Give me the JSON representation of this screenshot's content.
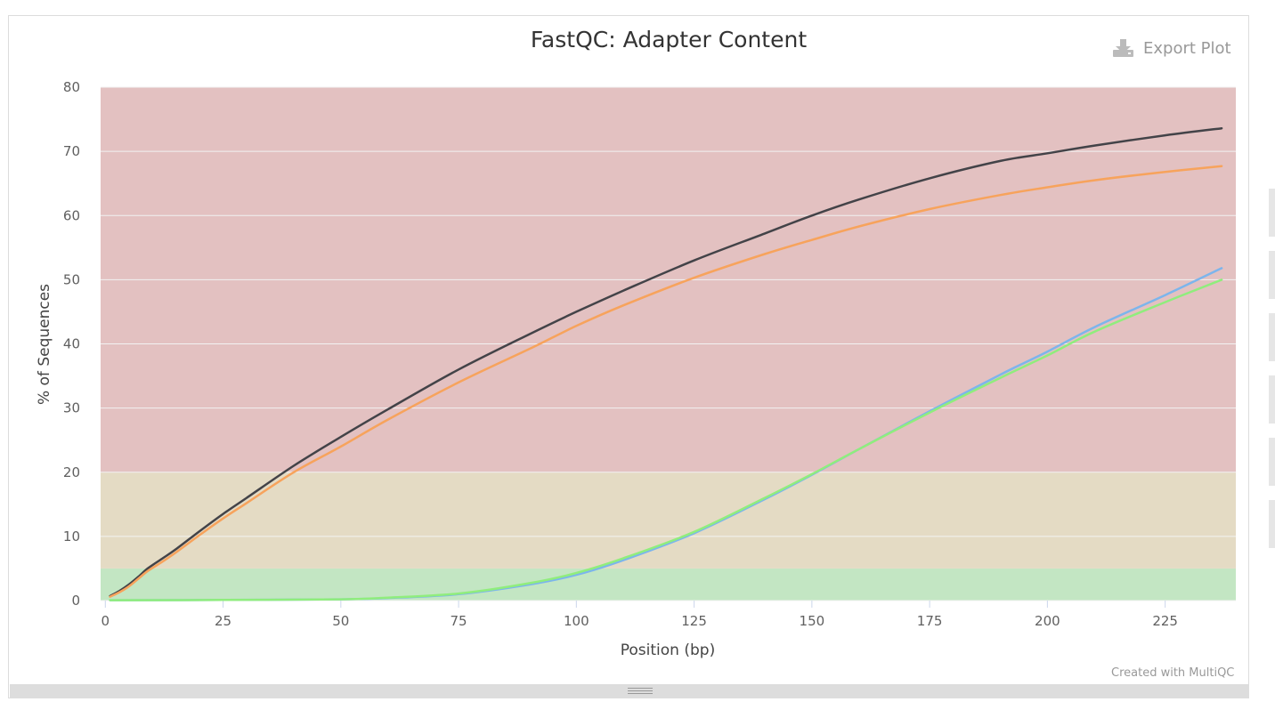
{
  "export_label": "Export Plot",
  "credit": "Created with MultiQC",
  "colors": {
    "band_fail": "#e3c1c1",
    "band_warn": "#e4dbc4",
    "band_pass": "#c3e6c3",
    "series": [
      "#434348",
      "#f7a35c",
      "#7cb5ec",
      "#90ed7d"
    ]
  },
  "chart_data": {
    "type": "line",
    "title": "FastQC: Adapter Content",
    "xlabel": "Position (bp)",
    "ylabel": "% of Sequences",
    "xlim": [
      -1,
      240
    ],
    "ylim": [
      0,
      80
    ],
    "xticks": [
      0,
      25,
      50,
      75,
      100,
      125,
      150,
      175,
      200,
      225
    ],
    "yticks": [
      0,
      10,
      20,
      30,
      40,
      50,
      60,
      70,
      80
    ],
    "bands": [
      {
        "from": 0,
        "to": 5,
        "level": "pass"
      },
      {
        "from": 5,
        "to": 20,
        "level": "warn"
      },
      {
        "from": 20,
        "to": 80,
        "level": "fail"
      }
    ],
    "grid": true,
    "legend": "none",
    "series": [
      {
        "x": [
          1,
          3,
          5,
          7,
          9,
          12,
          15,
          20,
          25,
          30,
          40,
          50,
          60,
          75,
          90,
          100,
          110,
          125,
          140,
          150,
          160,
          175,
          190,
          200,
          210,
          225,
          237
        ],
        "values": [
          0.7,
          1.5,
          2.5,
          3.7,
          5.0,
          6.5,
          8.0,
          10.8,
          13.5,
          16.0,
          21.0,
          25.5,
          29.8,
          36.0,
          41.5,
          45.0,
          48.3,
          53.0,
          57.2,
          60.0,
          62.5,
          65.8,
          68.5,
          69.7,
          70.9,
          72.5,
          73.6
        ]
      },
      {
        "x": [
          1,
          3,
          5,
          7,
          9,
          12,
          15,
          20,
          25,
          30,
          40,
          50,
          60,
          75,
          90,
          100,
          110,
          125,
          140,
          150,
          160,
          175,
          190,
          200,
          210,
          225,
          237
        ],
        "values": [
          0.6,
          1.3,
          2.2,
          3.4,
          4.6,
          6.0,
          7.5,
          10.2,
          12.8,
          15.2,
          20.0,
          24.0,
          28.2,
          34.0,
          39.2,
          42.8,
          46.0,
          50.3,
          54.0,
          56.2,
          58.3,
          61.0,
          63.2,
          64.4,
          65.5,
          66.8,
          67.7
        ]
      },
      {
        "x": [
          1,
          25,
          50,
          60,
          75,
          90,
          100,
          110,
          125,
          140,
          150,
          160,
          175,
          190,
          200,
          210,
          225,
          237
        ],
        "values": [
          0.05,
          0.1,
          0.2,
          0.4,
          1.0,
          2.5,
          4.0,
          6.3,
          10.5,
          15.8,
          19.6,
          23.6,
          29.5,
          35.2,
          38.8,
          42.6,
          47.6,
          51.8
        ]
      },
      {
        "x": [
          1,
          25,
          50,
          60,
          75,
          90,
          100,
          110,
          125,
          140,
          150,
          160,
          175,
          190,
          200,
          210,
          225,
          237
        ],
        "values": [
          0.05,
          0.1,
          0.2,
          0.45,
          1.1,
          2.7,
          4.3,
          6.6,
          10.7,
          16.0,
          19.7,
          23.6,
          29.3,
          34.7,
          38.2,
          41.9,
          46.5,
          50.0
        ]
      }
    ]
  }
}
